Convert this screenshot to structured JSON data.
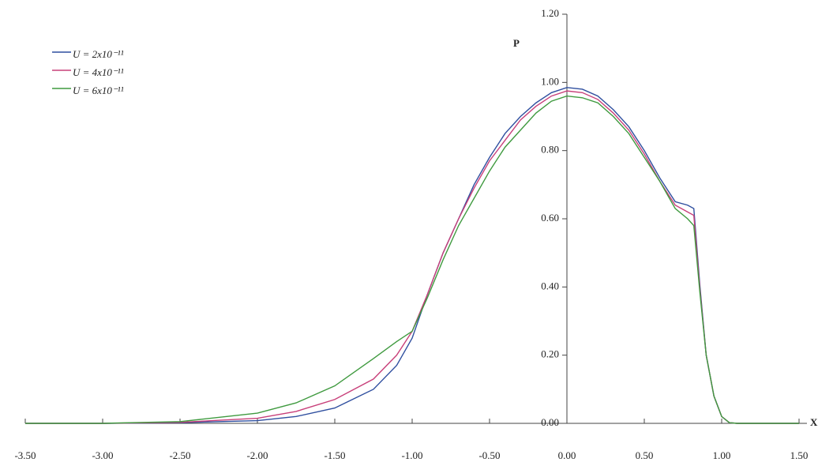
{
  "chart_data": {
    "type": "line",
    "x_label": "X",
    "y_label": "P",
    "x": [
      -3.5,
      -3.0,
      -2.5,
      -2.0,
      -1.75,
      -1.5,
      -1.25,
      -1.1,
      -1.0,
      -0.9,
      -0.8,
      -0.7,
      -0.6,
      -0.5,
      -0.4,
      -0.3,
      -0.2,
      -0.1,
      0.0,
      0.1,
      0.2,
      0.3,
      0.4,
      0.5,
      0.6,
      0.7,
      0.78,
      0.82,
      0.86,
      0.9,
      0.95,
      1.0,
      1.05,
      1.1,
      1.5
    ],
    "series": [
      {
        "name": "U = 2x10⁻¹¹",
        "color": "#2f4f9f",
        "values": [
          0,
          0,
          0.002,
          0.008,
          0.02,
          0.045,
          0.1,
          0.17,
          0.25,
          0.38,
          0.5,
          0.6,
          0.7,
          0.78,
          0.85,
          0.9,
          0.94,
          0.97,
          0.985,
          0.98,
          0.96,
          0.92,
          0.87,
          0.8,
          0.72,
          0.65,
          0.64,
          0.63,
          0.4,
          0.2,
          0.08,
          0.02,
          0.002,
          0,
          0
        ]
      },
      {
        "name": "U = 4x10⁻¹¹",
        "color": "#c8407a",
        "values": [
          0,
          0,
          0.003,
          0.015,
          0.035,
          0.07,
          0.13,
          0.2,
          0.27,
          0.38,
          0.5,
          0.6,
          0.69,
          0.77,
          0.83,
          0.89,
          0.93,
          0.96,
          0.975,
          0.97,
          0.95,
          0.91,
          0.86,
          0.79,
          0.71,
          0.64,
          0.62,
          0.61,
          0.39,
          0.2,
          0.08,
          0.02,
          0.002,
          0,
          0
        ]
      },
      {
        "name": "U = 6x10⁻¹¹",
        "color": "#3f9a3f",
        "values": [
          0,
          0,
          0.005,
          0.03,
          0.06,
          0.11,
          0.19,
          0.24,
          0.27,
          0.37,
          0.48,
          0.58,
          0.66,
          0.74,
          0.81,
          0.86,
          0.91,
          0.945,
          0.96,
          0.955,
          0.94,
          0.9,
          0.85,
          0.78,
          0.71,
          0.63,
          0.6,
          0.58,
          0.38,
          0.2,
          0.08,
          0.02,
          0.002,
          0,
          0
        ]
      }
    ],
    "xlim": [
      -3.5,
      1.5
    ],
    "xticks": [
      {
        "value": -3.5,
        "label": "-3.50"
      },
      {
        "value": -3.0,
        "label": "-3.00"
      },
      {
        "value": -2.5,
        "label": "-2.50"
      },
      {
        "value": -2.0,
        "label": "-2.00"
      },
      {
        "value": -1.5,
        "label": "-1.50"
      },
      {
        "value": -1.0,
        "label": "-1.00"
      },
      {
        "value": -0.5,
        "label": "-0.50"
      },
      {
        "value": 0,
        "label": "0.00"
      },
      {
        "value": 0.5,
        "label": "0.50"
      },
      {
        "value": 1.0,
        "label": "1.00"
      },
      {
        "value": 1.5,
        "label": "1.50"
      }
    ],
    "ylim": [
      0,
      1.2
    ],
    "yticks": [
      {
        "value": 0,
        "label": "0.00"
      },
      {
        "value": 0.2,
        "label": "0.20"
      },
      {
        "value": 0.4,
        "label": "0.40"
      },
      {
        "value": 0.6,
        "label": "0.60"
      },
      {
        "value": 0.8,
        "label": "0.80"
      },
      {
        "value": 1.0,
        "label": "1.00"
      },
      {
        "value": 1.2,
        "label": "1.20"
      }
    ],
    "legend": "upper-left"
  }
}
